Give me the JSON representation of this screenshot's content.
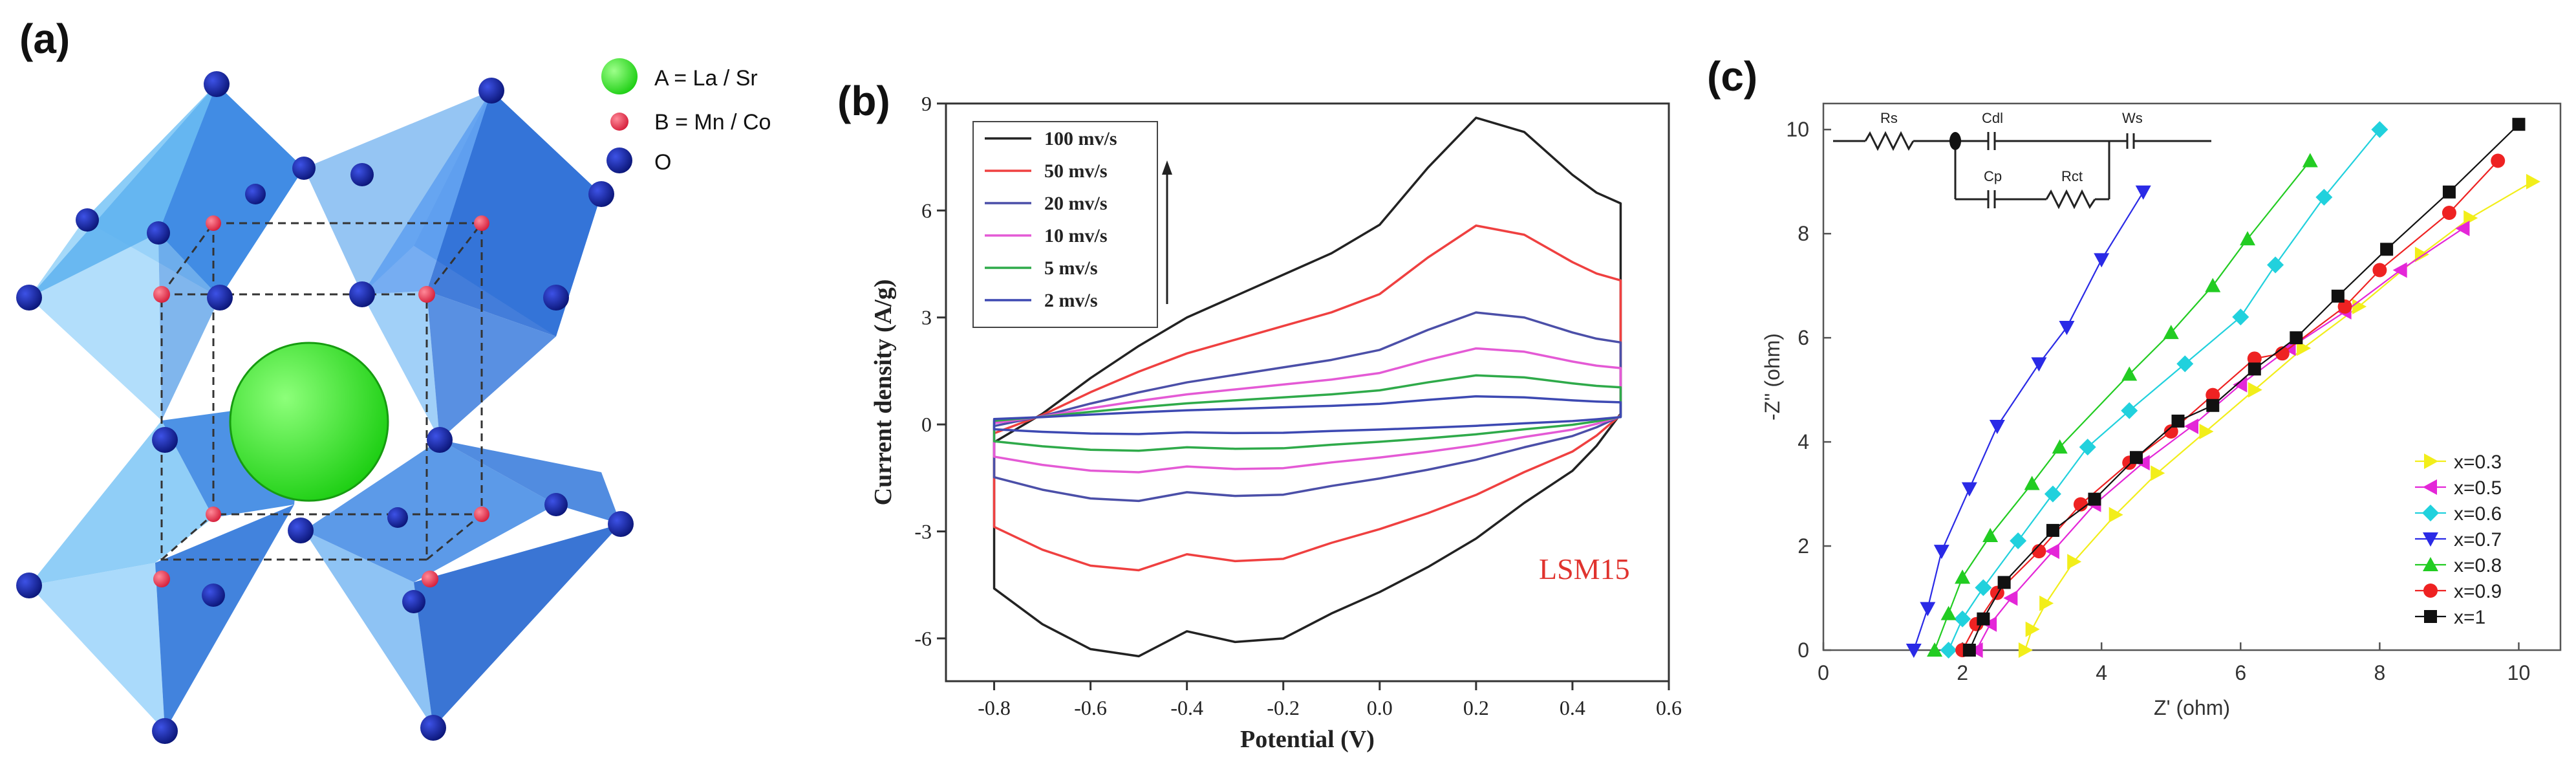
{
  "panels": {
    "a": {
      "label": "(a)",
      "legend": [
        {
          "label": "A = La / Sr",
          "color": "#22e01a"
        },
        {
          "label": "B = Mn / Co",
          "color": "#e8304a"
        },
        {
          "label": "O",
          "color": "#0d1a8c"
        }
      ]
    },
    "b": {
      "label": "(b)"
    },
    "c": {
      "label": "(c)",
      "circuit_labels": [
        "Rs",
        "Cdl",
        "Ws",
        "Cp",
        "Rct"
      ]
    }
  },
  "chart_data": [
    {
      "id": "cv",
      "type": "line",
      "title": "",
      "xlabel": "Potential (V)",
      "ylabel": "Current density (A/g)",
      "xlim": [
        -0.9,
        0.6
      ],
      "ylim": [
        -7.2,
        9
      ],
      "xticks": [
        -0.8,
        -0.6,
        -0.4,
        -0.2,
        0.0,
        0.2,
        0.4,
        0.6
      ],
      "xtick_labels": [
        "-0.8",
        "-0.6",
        "-0.4",
        "-0.2",
        "0.0",
        "0.2",
        "0.4",
        "0.6"
      ],
      "yticks": [
        -6,
        -3,
        0,
        3,
        6,
        9
      ],
      "ytick_labels": [
        "-6",
        "-3",
        "0",
        "3",
        "6",
        "9"
      ],
      "annotation": "LSM15",
      "annotation_color": "#e0332e",
      "series": [
        {
          "name": "100 mv/s",
          "color": "#222222",
          "amplitude": 1.0
        },
        {
          "name": "50 mv/s",
          "color": "#ef4040",
          "amplitude": 0.64
        },
        {
          "name": "20 mv/s",
          "color": "#4b4fa8",
          "amplitude": 0.35
        },
        {
          "name": "10 mv/s",
          "color": "#e45ad5",
          "amplitude": 0.23
        },
        {
          "name": "5 mv/s",
          "color": "#2faa4a",
          "amplitude": 0.14
        },
        {
          "name": "2 mv/s",
          "color": "#3d49b2",
          "amplitude": 0.07
        }
      ],
      "reference_loop": {
        "upper": [
          [
            -0.8,
            -0.5
          ],
          [
            -0.7,
            0.3
          ],
          [
            -0.6,
            1.3
          ],
          [
            -0.5,
            2.2
          ],
          [
            -0.4,
            3.0
          ],
          [
            -0.3,
            3.6
          ],
          [
            -0.2,
            4.2
          ],
          [
            -0.1,
            4.8
          ],
          [
            0.0,
            5.6
          ],
          [
            0.1,
            7.2
          ],
          [
            0.2,
            8.6
          ],
          [
            0.3,
            8.2
          ],
          [
            0.4,
            7.0
          ],
          [
            0.45,
            6.5
          ],
          [
            0.5,
            6.2
          ]
        ],
        "lower": [
          [
            0.5,
            0.3
          ],
          [
            0.45,
            -0.6
          ],
          [
            0.4,
            -1.3
          ],
          [
            0.3,
            -2.2
          ],
          [
            0.2,
            -3.2
          ],
          [
            0.1,
            -4.0
          ],
          [
            0.0,
            -4.7
          ],
          [
            -0.1,
            -5.3
          ],
          [
            -0.2,
            -6.0
          ],
          [
            -0.3,
            -6.1
          ],
          [
            -0.4,
            -5.8
          ],
          [
            -0.5,
            -6.5
          ],
          [
            -0.6,
            -6.3
          ],
          [
            -0.7,
            -5.6
          ],
          [
            -0.8,
            -4.6
          ]
        ]
      }
    },
    {
      "id": "eis",
      "type": "scatter",
      "title": "",
      "xlabel": "Z' (ohm)",
      "ylabel": "-Z'' (ohm)",
      "xlim": [
        0,
        10.6
      ],
      "ylim": [
        0,
        10.5
      ],
      "xticks": [
        0,
        2,
        4,
        6,
        8,
        10
      ],
      "xtick_labels": [
        "0",
        "2",
        "4",
        "6",
        "8",
        "10"
      ],
      "yticks": [
        0,
        2,
        4,
        6,
        8,
        10
      ],
      "ytick_labels": [
        "0",
        "2",
        "4",
        "6",
        "8",
        "10"
      ],
      "legend_position": "bottom-right",
      "series": [
        {
          "name": "x=0.3",
          "color": "#f2ee1a",
          "marker": "triangle-right",
          "points": [
            [
              2.9,
              0
            ],
            [
              3.0,
              0.4
            ],
            [
              3.2,
              0.9
            ],
            [
              3.6,
              1.7
            ],
            [
              4.2,
              2.6
            ],
            [
              4.8,
              3.4
            ],
            [
              5.5,
              4.2
            ],
            [
              6.2,
              5.0
            ],
            [
              6.9,
              5.8
            ],
            [
              7.7,
              6.6
            ],
            [
              8.6,
              7.6
            ],
            [
              9.3,
              8.3
            ],
            [
              10.2,
              9.0
            ]
          ]
        },
        {
          "name": "x=0.5",
          "color": "#e426d8",
          "marker": "triangle-left",
          "points": [
            [
              2.2,
              0
            ],
            [
              2.4,
              0.5
            ],
            [
              2.7,
              1.0
            ],
            [
              3.3,
              1.9
            ],
            [
              3.9,
              2.8
            ],
            [
              4.6,
              3.6
            ],
            [
              5.3,
              4.3
            ],
            [
              6.0,
              5.1
            ],
            [
              6.7,
              5.8
            ],
            [
              7.5,
              6.5
            ],
            [
              8.3,
              7.3
            ],
            [
              9.2,
              8.1
            ]
          ]
        },
        {
          "name": "x=0.6",
          "color": "#21d1dd",
          "marker": "diamond",
          "points": [
            [
              1.8,
              0
            ],
            [
              2.0,
              0.6
            ],
            [
              2.3,
              1.2
            ],
            [
              2.8,
              2.1
            ],
            [
              3.3,
              3.0
            ],
            [
              3.8,
              3.9
            ],
            [
              4.4,
              4.6
            ],
            [
              5.2,
              5.5
            ],
            [
              6.0,
              6.4
            ],
            [
              6.5,
              7.4
            ],
            [
              7.2,
              8.7
            ],
            [
              8.0,
              10.0
            ]
          ]
        },
        {
          "name": "x=0.7",
          "color": "#2a2ae6",
          "marker": "triangle-down",
          "points": [
            [
              1.3,
              0
            ],
            [
              1.5,
              0.8
            ],
            [
              1.7,
              1.9
            ],
            [
              2.1,
              3.1
            ],
            [
              2.5,
              4.3
            ],
            [
              3.1,
              5.5
            ],
            [
              3.5,
              6.2
            ],
            [
              4.0,
              7.5
            ],
            [
              4.6,
              8.8
            ]
          ]
        },
        {
          "name": "x=0.8",
          "color": "#22cc22",
          "marker": "triangle-up",
          "points": [
            [
              1.6,
              0
            ],
            [
              1.8,
              0.7
            ],
            [
              2.0,
              1.4
            ],
            [
              2.4,
              2.2
            ],
            [
              3.0,
              3.2
            ],
            [
              3.4,
              3.9
            ],
            [
              4.4,
              5.3
            ],
            [
              5.0,
              6.1
            ],
            [
              5.6,
              7.0
            ],
            [
              6.1,
              7.9
            ],
            [
              7.0,
              9.4
            ]
          ]
        },
        {
          "name": "x=0.9",
          "color": "#ee2222",
          "marker": "circle",
          "points": [
            [
              2.0,
              0
            ],
            [
              2.2,
              0.5
            ],
            [
              2.5,
              1.1
            ],
            [
              3.1,
              1.9
            ],
            [
              3.7,
              2.8
            ],
            [
              4.4,
              3.6
            ],
            [
              5.0,
              4.2
            ],
            [
              5.6,
              4.9
            ],
            [
              6.2,
              5.6
            ],
            [
              6.6,
              5.7
            ],
            [
              7.5,
              6.6
            ],
            [
              8.0,
              7.3
            ],
            [
              9.0,
              8.4
            ],
            [
              9.7,
              9.4
            ]
          ]
        },
        {
          "name": "x=1",
          "color": "#111111",
          "marker": "square",
          "points": [
            [
              2.1,
              0
            ],
            [
              2.3,
              0.6
            ],
            [
              2.6,
              1.3
            ],
            [
              3.3,
              2.3
            ],
            [
              3.9,
              2.9
            ],
            [
              4.5,
              3.7
            ],
            [
              5.1,
              4.4
            ],
            [
              5.6,
              4.7
            ],
            [
              6.2,
              5.4
            ],
            [
              6.8,
              6.0
            ],
            [
              7.4,
              6.8
            ],
            [
              8.1,
              7.7
            ],
            [
              9.0,
              8.8
            ],
            [
              10.0,
              10.1
            ]
          ]
        }
      ]
    }
  ]
}
